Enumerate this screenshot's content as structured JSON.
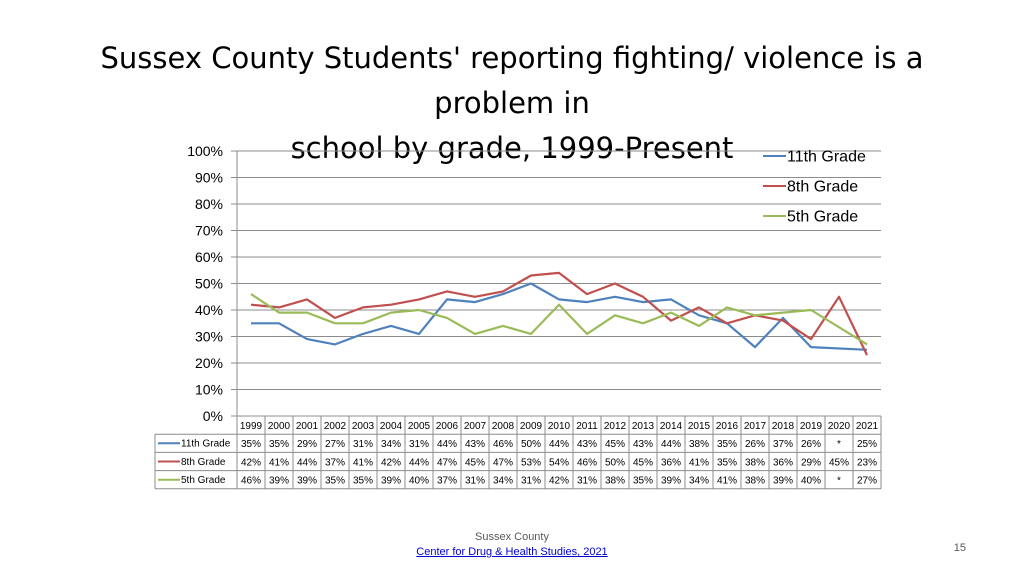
{
  "title": "Sussex County Students' reporting fighting/ violence is a problem in school by grade, 1999-Present",
  "title_line1": "Sussex County Students' reporting fighting/ violence is a problem in",
  "title_line2": "school by grade, 1999-Present",
  "footer": {
    "line1": "Sussex County",
    "link": "Center for Drug & Health Studies, 2021",
    "page_number": "15"
  },
  "missing_marker": "*",
  "chart_data": {
    "type": "line",
    "categories": [
      "1999",
      "2000",
      "2001",
      "2002",
      "2003",
      "2004",
      "2005",
      "2006",
      "2007",
      "2008",
      "2009",
      "2010",
      "2011",
      "2012",
      "2013",
      "2014",
      "2015",
      "2016",
      "2017",
      "2018",
      "2019",
      "2020",
      "2021"
    ],
    "ylim": [
      0,
      100
    ],
    "yticks": [
      "0%",
      "10%",
      "20%",
      "30%",
      "40%",
      "50%",
      "60%",
      "70%",
      "80%",
      "90%",
      "100%"
    ],
    "grid": true,
    "legend_position": "top-right",
    "series": [
      {
        "name": "11th Grade",
        "color": "#4f81bd",
        "values": [
          35,
          35,
          29,
          27,
          31,
          34,
          31,
          44,
          43,
          46,
          50,
          44,
          43,
          45,
          43,
          44,
          38,
          35,
          26,
          37,
          26,
          null,
          25
        ],
        "labels": [
          "35%",
          "35%",
          "29%",
          "27%",
          "31%",
          "34%",
          "31%",
          "44%",
          "43%",
          "46%",
          "50%",
          "44%",
          "43%",
          "45%",
          "43%",
          "44%",
          "38%",
          "35%",
          "26%",
          "37%",
          "26%",
          "*",
          "25%"
        ]
      },
      {
        "name": "8th Grade",
        "color": "#c0504d",
        "values": [
          42,
          41,
          44,
          37,
          41,
          42,
          44,
          47,
          45,
          47,
          53,
          54,
          46,
          50,
          45,
          36,
          41,
          35,
          38,
          36,
          29,
          45,
          23
        ],
        "labels": [
          "42%",
          "41%",
          "44%",
          "37%",
          "41%",
          "42%",
          "44%",
          "47%",
          "45%",
          "47%",
          "53%",
          "54%",
          "46%",
          "50%",
          "45%",
          "36%",
          "41%",
          "35%",
          "38%",
          "36%",
          "29%",
          "45%",
          "23%"
        ]
      },
      {
        "name": "5th Grade",
        "color": "#9bbb59",
        "values": [
          46,
          39,
          39,
          35,
          35,
          39,
          40,
          37,
          31,
          34,
          31,
          42,
          31,
          38,
          35,
          39,
          34,
          41,
          38,
          39,
          40,
          null,
          27
        ],
        "labels": [
          "46%",
          "39%",
          "39%",
          "35%",
          "35%",
          "39%",
          "40%",
          "37%",
          "31%",
          "34%",
          "31%",
          "42%",
          "31%",
          "38%",
          "35%",
          "39%",
          "34%",
          "41%",
          "38%",
          "39%",
          "40%",
          "*",
          "27%"
        ]
      }
    ]
  }
}
